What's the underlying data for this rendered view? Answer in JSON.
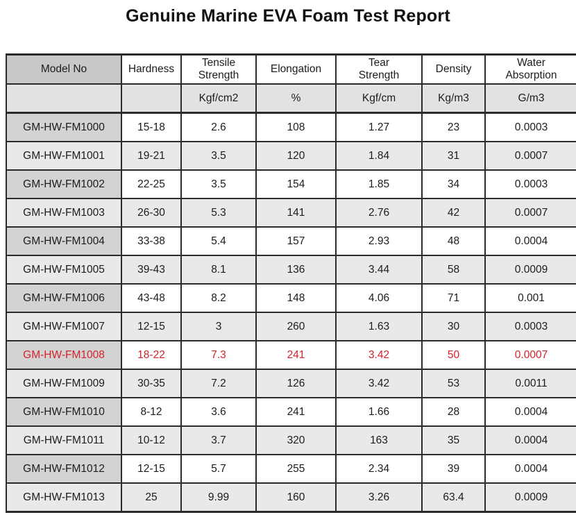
{
  "title": "Genuine Marine EVA Foam Test Report",
  "colors": {
    "highlight_text": "#d4232a",
    "border": "#2b2b2b",
    "header_model_bg": "#c8c8c8",
    "units_row_bg": "#e2e2e2",
    "model_cell_bg": "#d3d3d3",
    "striped_row_bg": "#e9e9e9"
  },
  "table": {
    "columns": [
      "Model No",
      "Hardness",
      "Tensile Strength",
      "Elongation",
      "Tear Strength",
      "Density",
      "Water Absorption"
    ],
    "units": [
      "",
      "",
      "Kgf/cm2",
      "%",
      "Kgf/cm",
      "Kg/m3",
      "G/m3"
    ],
    "rows": [
      {
        "model": "GM-HW-FM1000",
        "values": [
          "15-18",
          "2.6",
          "108",
          "1.27",
          "23",
          "0.0003"
        ],
        "highlight": false
      },
      {
        "model": "GM-HW-FM1001",
        "values": [
          "19-21",
          "3.5",
          "120",
          "1.84",
          "31",
          "0.0007"
        ],
        "highlight": false
      },
      {
        "model": "GM-HW-FM1002",
        "values": [
          "22-25",
          "3.5",
          "154",
          "1.85",
          "34",
          "0.0003"
        ],
        "highlight": false
      },
      {
        "model": "GM-HW-FM1003",
        "values": [
          "26-30",
          "5.3",
          "141",
          "2.76",
          "42",
          "0.0007"
        ],
        "highlight": false
      },
      {
        "model": "GM-HW-FM1004",
        "values": [
          "33-38",
          "5.4",
          "157",
          "2.93",
          "48",
          "0.0004"
        ],
        "highlight": false
      },
      {
        "model": "GM-HW-FM1005",
        "values": [
          "39-43",
          "8.1",
          "136",
          "3.44",
          "58",
          "0.0009"
        ],
        "highlight": false
      },
      {
        "model": "GM-HW-FM1006",
        "values": [
          "43-48",
          "8.2",
          "148",
          "4.06",
          "71",
          "0.001"
        ],
        "highlight": false
      },
      {
        "model": "GM-HW-FM1007",
        "values": [
          "12-15",
          "3",
          "260",
          "1.63",
          "30",
          "0.0003"
        ],
        "highlight": false
      },
      {
        "model": "GM-HW-FM1008",
        "values": [
          "18-22",
          "7.3",
          "241",
          "3.42",
          "50",
          "0.0007"
        ],
        "highlight": true
      },
      {
        "model": "GM-HW-FM1009",
        "values": [
          "30-35",
          "7.2",
          "126",
          "3.42",
          "53",
          "0.0011"
        ],
        "highlight": false
      },
      {
        "model": "GM-HW-FM1010",
        "values": [
          "8-12",
          "3.6",
          "241",
          "1.66",
          "28",
          "0.0004"
        ],
        "highlight": false
      },
      {
        "model": "GM-HW-FM1011",
        "values": [
          "10-12",
          "3.7",
          "320",
          "163",
          "35",
          "0.0004"
        ],
        "highlight": false
      },
      {
        "model": "GM-HW-FM1012",
        "values": [
          "12-15",
          "5.7",
          "255",
          "2.34",
          "39",
          "0.0004"
        ],
        "highlight": false
      },
      {
        "model": "GM-HW-FM1013",
        "values": [
          "25",
          "9.99",
          "160",
          "3.26",
          "63.4",
          "0.0009"
        ],
        "highlight": false
      }
    ]
  }
}
